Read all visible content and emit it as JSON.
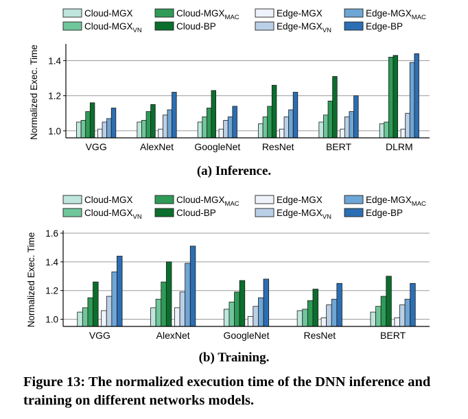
{
  "figure": {
    "caption": "Figure 13: The normalized execution time of the DNN inference and training on different networks models.",
    "colors": {
      "Cloud-MGX": "#bfe6dd",
      "Cloud-MGX_VN": "#6fc69a",
      "Cloud-MGX_MAC": "#2f9b57",
      "Cloud-BP": "#0b6e2d",
      "Edge-MGX": "#eef3fb",
      "Edge-MGX_VN": "#bad0e7",
      "Edge-MGX_MAC": "#6ea6d5",
      "Edge-BP": "#2c6eb3"
    }
  },
  "legend": {
    "items": [
      {
        "key": "Cloud-MGX",
        "base": "Cloud-MGX",
        "sub": ""
      },
      {
        "key": "Cloud-MGX_MAC",
        "base": "Cloud-MGX",
        "sub": "MAC"
      },
      {
        "key": "Edge-MGX",
        "base": "Edge-MGX",
        "sub": ""
      },
      {
        "key": "Edge-MGX_MAC",
        "base": "Edge-MGX",
        "sub": "MAC"
      },
      {
        "key": "Cloud-MGX_VN",
        "base": "Cloud-MGX",
        "sub": "VN"
      },
      {
        "key": "Cloud-BP",
        "base": "Cloud-BP",
        "sub": ""
      },
      {
        "key": "Edge-MGX_VN",
        "base": "Edge-MGX",
        "sub": "VN"
      },
      {
        "key": "Edge-BP",
        "base": "Edge-BP",
        "sub": ""
      }
    ]
  },
  "chart_data": [
    {
      "type": "bar",
      "title": "(a) Inference.",
      "ylabel": "Normalized Exec. Time",
      "ylim": [
        0.96,
        1.48
      ],
      "yticks": [
        "1.0",
        "1.2",
        "1.4"
      ],
      "ytick_values": [
        1.0,
        1.2,
        1.4
      ],
      "grid": "horizontal",
      "legend_position": "top",
      "categories": [
        "VGG",
        "AlexNet",
        "GoogleNet",
        "ResNet",
        "BERT",
        "DLRM"
      ],
      "series": [
        {
          "name": "Cloud-MGX",
          "values": [
            1.05,
            1.05,
            1.05,
            1.04,
            1.05,
            1.04
          ]
        },
        {
          "name": "Cloud-MGX_VN",
          "values": [
            1.06,
            1.06,
            1.08,
            1.08,
            1.09,
            1.05
          ]
        },
        {
          "name": "Cloud-MGX_MAC",
          "values": [
            1.11,
            1.11,
            1.13,
            1.14,
            1.17,
            1.42
          ]
        },
        {
          "name": "Cloud-BP",
          "values": [
            1.16,
            1.15,
            1.23,
            1.26,
            1.31,
            1.43
          ]
        },
        {
          "name": "Edge-MGX",
          "values": [
            1.01,
            1.01,
            1.01,
            1.01,
            1.01,
            1.01
          ]
        },
        {
          "name": "Edge-MGX_VN",
          "values": [
            1.05,
            1.09,
            1.06,
            1.08,
            1.08,
            1.1
          ]
        },
        {
          "name": "Edge-MGX_MAC",
          "values": [
            1.07,
            1.12,
            1.08,
            1.12,
            1.11,
            1.39
          ]
        },
        {
          "name": "Edge-BP",
          "values": [
            1.13,
            1.22,
            1.14,
            1.22,
            1.2,
            1.44
          ]
        }
      ]
    },
    {
      "type": "bar",
      "title": "(b) Training.",
      "ylabel": "Normalized Exec. Time",
      "ylim": [
        0.95,
        1.6
      ],
      "yticks": [
        "1.0",
        "1.2",
        "1.4",
        "1.6"
      ],
      "ytick_values": [
        1.0,
        1.2,
        1.4,
        1.6
      ],
      "grid": "horizontal",
      "legend_position": "top",
      "categories": [
        "VGG",
        "AlexNet",
        "GoogleNet",
        "ResNet",
        "BERT"
      ],
      "series": [
        {
          "name": "Cloud-MGX",
          "values": [
            1.05,
            1.08,
            1.07,
            1.06,
            1.05
          ]
        },
        {
          "name": "Cloud-MGX_VN",
          "values": [
            1.08,
            1.14,
            1.12,
            1.07,
            1.09
          ]
        },
        {
          "name": "Cloud-MGX_MAC",
          "values": [
            1.15,
            1.26,
            1.19,
            1.13,
            1.16
          ]
        },
        {
          "name": "Cloud-BP",
          "values": [
            1.26,
            1.4,
            1.27,
            1.21,
            1.3
          ]
        },
        {
          "name": "Edge-MGX",
          "values": [
            1.06,
            1.08,
            1.02,
            1.01,
            1.01
          ]
        },
        {
          "name": "Edge-MGX_VN",
          "values": [
            1.16,
            1.19,
            1.09,
            1.1,
            1.1
          ]
        },
        {
          "name": "Edge-MGX_MAC",
          "values": [
            1.33,
            1.39,
            1.15,
            1.14,
            1.14
          ]
        },
        {
          "name": "Edge-BP",
          "values": [
            1.44,
            1.51,
            1.28,
            1.25,
            1.25
          ]
        }
      ]
    }
  ]
}
